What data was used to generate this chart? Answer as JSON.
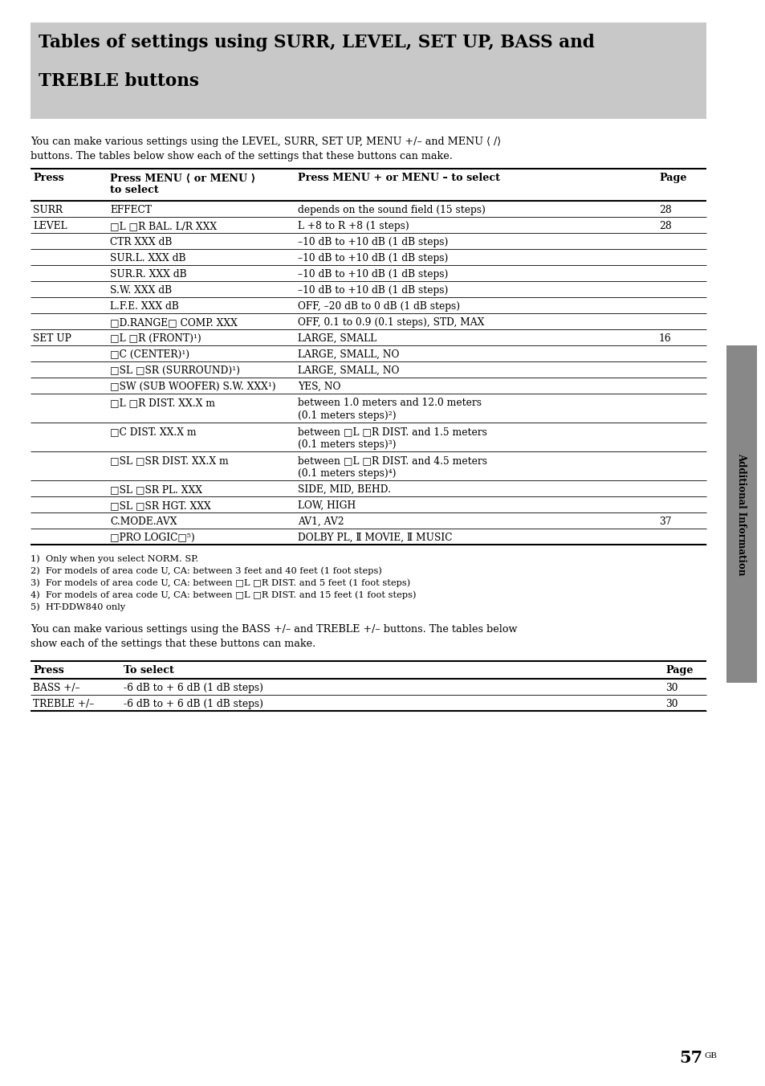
{
  "title_line1": "Tables of settings using SURR, LEVEL, SET UP, BASS and",
  "title_line2": "TREBLE buttons",
  "title_bg": "#c8c8c8",
  "page_bg": "#ffffff",
  "intro1_line1": "You can make various settings using the LEVEL, SURR, SET UP, MENU +/– and MENU ⟨ /⟩",
  "intro1_line2": "buttons. The tables below show each of the settings that these buttons can make.",
  "t1_h0": "Press",
  "t1_h1a": "Press MENU ⟨ or MENU ⟩",
  "t1_h1b": "to select",
  "t1_h2": "Press MENU + or MENU – to select",
  "t1_h3": "Page",
  "table1_rows": [
    [
      "SURR",
      "EFFECT",
      "depends on the sound field (15 steps)",
      "28"
    ],
    [
      "LEVEL",
      "[LR] BAL. L/R XXX",
      "L +8 to R +8 (1 steps)",
      "28"
    ],
    [
      "",
      "CTR XXX dB",
      "–10 dB to +10 dB (1 dB steps)",
      ""
    ],
    [
      "",
      "SUR.L. XXX dB",
      "–10 dB to +10 dB (1 dB steps)",
      ""
    ],
    [
      "",
      "SUR.R. XXX dB",
      "–10 dB to +10 dB (1 dB steps)",
      ""
    ],
    [
      "",
      "S.W. XXX dB",
      "–10 dB to +10 dB (1 dB steps)",
      ""
    ],
    [
      "",
      "L.F.E. XXX dB",
      "OFF, –20 dB to 0 dB (1 dB steps)",
      ""
    ],
    [
      "",
      "[DR] COMP. XXX",
      "OFF, 0.1 to 0.9 (0.1 steps), STD, MAX",
      ""
    ],
    [
      "SET UP",
      "[LR] (FRONT)¹)",
      "LARGE, SMALL",
      "16"
    ],
    [
      "",
      "[C] (CENTER)¹)",
      "LARGE, SMALL, NO",
      ""
    ],
    [
      "",
      "[SL SR] (SURROUND)¹)",
      "LARGE, SMALL, NO",
      ""
    ],
    [
      "",
      "[SW] (SUB WOOFER) S.W. XXX¹)",
      "YES, NO",
      ""
    ],
    [
      "",
      "[LR] DIST. XX.X m",
      "between 1.0 meters and 12.0 meters\n(0.1 meters steps)²)",
      ""
    ],
    [
      "",
      "[C] DIST. XX.X m",
      "between [LR] DIST. and 1.5 meters\n(0.1 meters steps)³)",
      ""
    ],
    [
      "",
      "[SL SR] DIST. XX.X m",
      "between [LR] DIST. and 4.5 meters\n(0.1 meters steps)⁴)",
      ""
    ],
    [
      "",
      "[SL SR] PL. XXX",
      "SIDE, MID, BEHD.",
      ""
    ],
    [
      "",
      "[SL SR] HGT. XXX",
      "LOW, HIGH",
      ""
    ],
    [
      "",
      "C.MODE.AVX",
      "AV1, AV2",
      "37"
    ],
    [
      "",
      "[PL]⁵)",
      "DOLBY PL, Ⅱ MOVIE, Ⅱ MUSIC",
      ""
    ]
  ],
  "footnotes": [
    "1)  Only when you select NORM. SP.",
    "2)  For models of area code U, CA: between 3 feet and 40 feet (1 foot steps)",
    "3)  For models of area code U, CA: between [LR] DIST. and 5 feet (1 foot steps)",
    "4)  For models of area code U, CA: between [LR] DIST. and 15 feet (1 foot steps)",
    "5)  HT-DDW840 only"
  ],
  "intro2_line1": "You can make various settings using the BASS +/– and TREBLE +/– buttons. The tables below",
  "intro2_line2": "show each of the settings that these buttons can make.",
  "t2_h0": "Press",
  "t2_h1": "To select",
  "t2_h3": "Page",
  "table2_rows": [
    [
      "BASS +/–",
      "-6 dB to + 6 dB (1 dB steps)",
      "30"
    ],
    [
      "TREBLE +/–",
      "-6 dB to + 6 dB (1 dB steps)",
      "30"
    ]
  ],
  "side_label": "Additional Information",
  "side_bg": "#888888",
  "page_num": "57",
  "page_suffix": "GB"
}
